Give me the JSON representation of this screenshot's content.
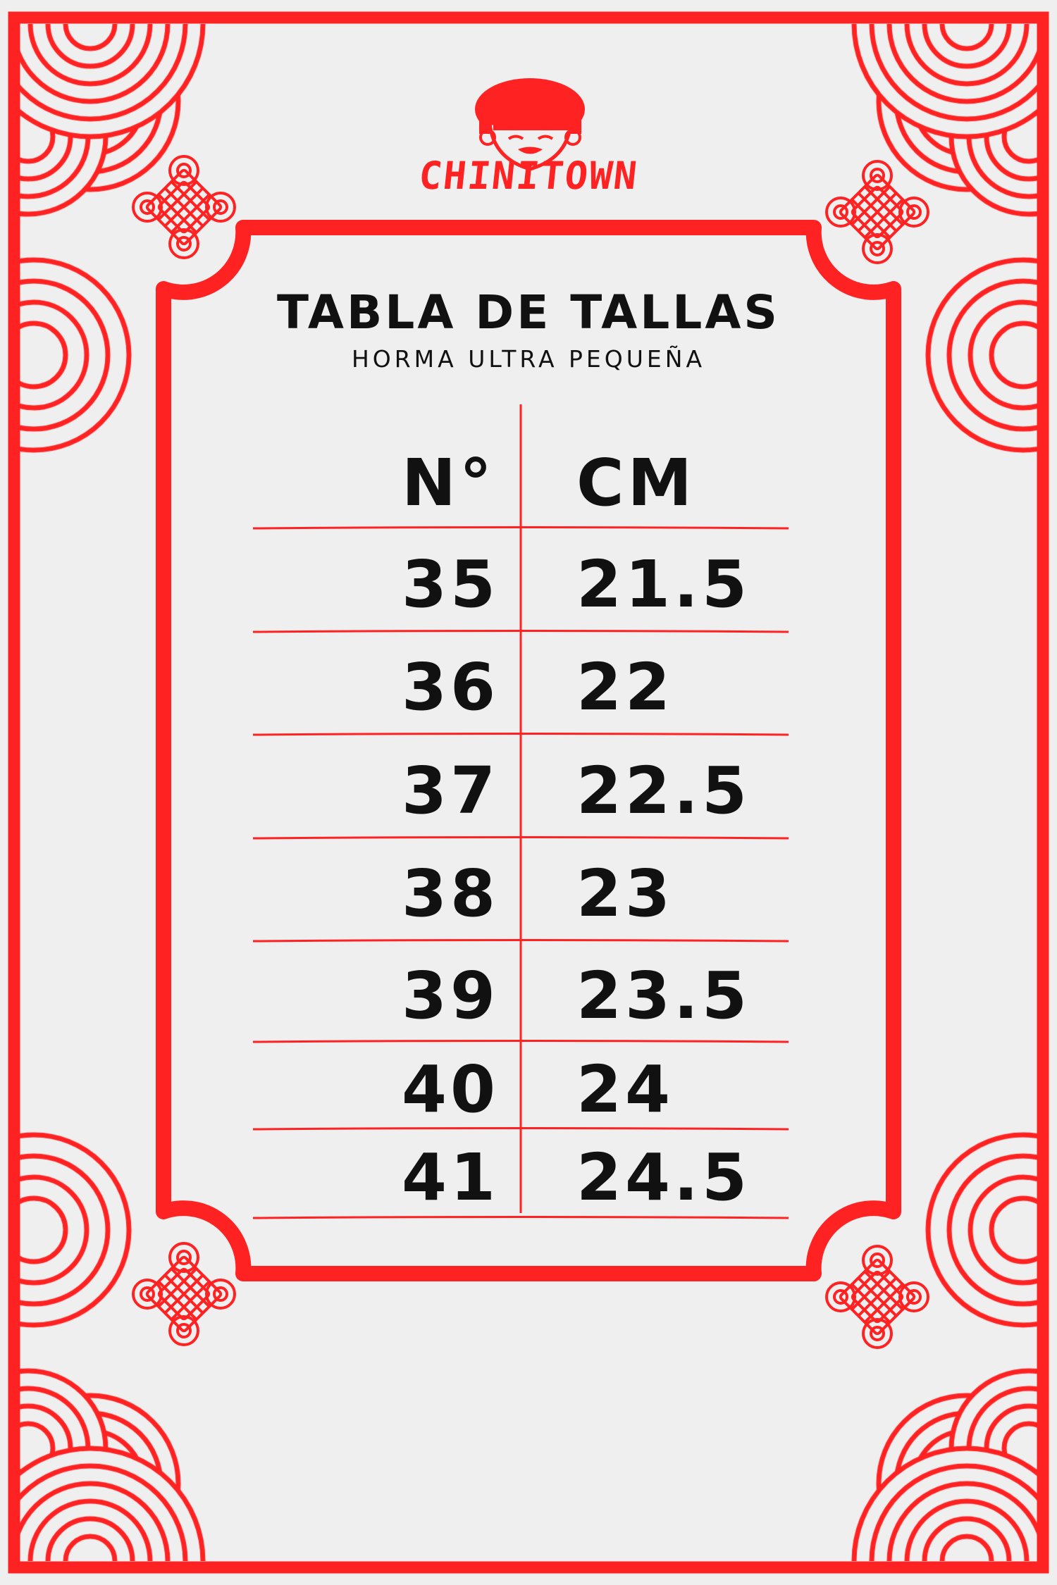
{
  "brand": {
    "name": "CHINITOWN",
    "logo_icon": "girl-face-logo"
  },
  "title": "TABLA DE TALLAS",
  "subtitle": "HORMA ULTRA PEQUEÑA",
  "table": {
    "headers": [
      "N°",
      "CM"
    ],
    "rows": [
      [
        "35",
        "21.5"
      ],
      [
        "36",
        "22"
      ],
      [
        "37",
        "22.5"
      ],
      [
        "38",
        "23"
      ],
      [
        "39",
        "23.5"
      ],
      [
        "40",
        "24"
      ],
      [
        "41",
        "24.5"
      ]
    ]
  },
  "colors": {
    "accent": "#fe2222",
    "background": "#efefef",
    "text": "#111111"
  }
}
